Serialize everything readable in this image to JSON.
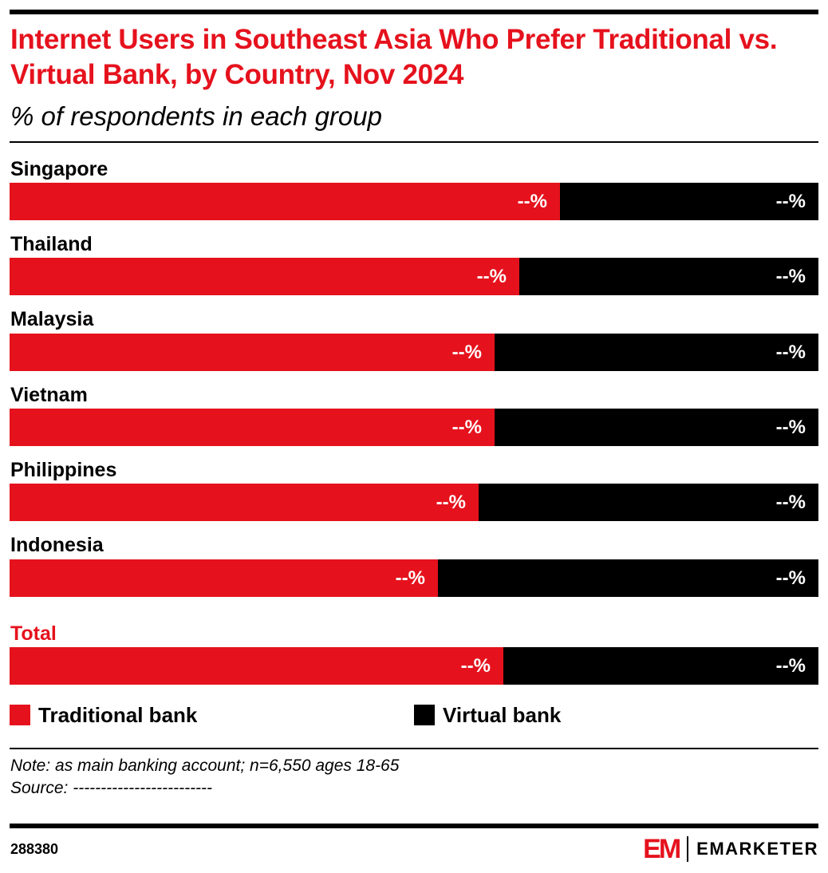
{
  "header": {
    "title": "Internet Users in Southeast Asia Who Prefer Traditional vs. Virtual Bank, by Country, Nov 2024",
    "subtitle": "% of respondents in each group"
  },
  "chart_data": {
    "type": "bar",
    "orientation": "horizontal",
    "stacked": true,
    "normalized_to": 100,
    "categories": [
      "Singapore",
      "Thailand",
      "Malaysia",
      "Vietnam",
      "Philippines",
      "Indonesia",
      "Total"
    ],
    "series": [
      {
        "name": "Traditional bank",
        "color": "#e5121d",
        "values": [
          68,
          63,
          60,
          60,
          58,
          53,
          61
        ],
        "labels": [
          "--%",
          "--%",
          "--%",
          "--%",
          "--%",
          "--%",
          "--%"
        ]
      },
      {
        "name": "Virtual bank",
        "color": "#000000",
        "values": [
          32,
          37,
          40,
          40,
          42,
          47,
          39
        ],
        "labels": [
          "--%",
          "--%",
          "--%",
          "--%",
          "--%",
          "--%",
          "--%"
        ]
      }
    ],
    "xlim": [
      0,
      100
    ],
    "grid": false,
    "legend": "bottom",
    "highlight_category": "Total",
    "highlight_color": "#e5121d"
  },
  "legend": {
    "traditional": "Traditional bank",
    "virtual": "Virtual bank"
  },
  "footer": {
    "note": "Note: as main banking account; n=6,550 ages 18-65",
    "source": "Source: -------------------------",
    "chart_id": "288380",
    "logo_mark": "EM",
    "logo_text": "EMARKETER"
  }
}
